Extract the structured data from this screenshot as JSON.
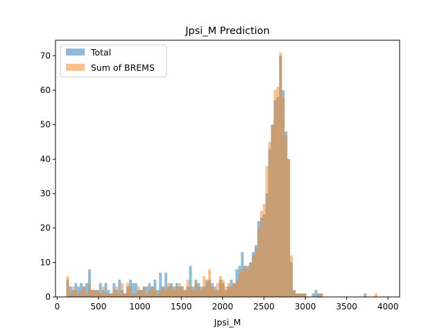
{
  "chart_data": {
    "type": "histogram",
    "title": "Jpsi_M Prediction",
    "xlabel": "Jpsi_M",
    "ylabel": "",
    "xlim": [
      -20,
      4140
    ],
    "ylim": [
      0,
      74.5
    ],
    "xticks": [
      0,
      500,
      1000,
      1500,
      2000,
      2500,
      3000,
      3500,
      4000
    ],
    "yticks": [
      0,
      10,
      20,
      30,
      40,
      50,
      60,
      70
    ],
    "grid": false,
    "legend_position": "top-left",
    "series": [
      {
        "name": "Total",
        "color": "#1f77b4",
        "alpha": 0.5,
        "bin_start": 110,
        "bin_width": 33,
        "values": [
          5,
          3,
          2,
          4,
          3,
          4,
          3,
          4,
          8,
          2,
          2,
          2,
          4,
          2,
          4,
          2,
          1,
          4,
          2,
          5,
          2,
          1,
          3,
          5,
          4,
          4,
          2,
          2,
          3,
          3,
          4,
          3,
          5,
          2,
          7,
          3,
          7,
          3,
          4,
          3,
          4,
          3,
          3,
          2,
          3,
          9,
          3,
          5,
          4,
          3,
          3,
          5,
          5,
          4,
          3,
          2,
          5,
          4,
          2,
          3,
          5,
          4,
          8,
          9,
          13,
          9,
          9,
          10,
          13,
          15,
          22,
          23,
          24,
          30,
          43,
          50,
          57,
          58,
          70,
          60,
          48,
          40,
          10,
          2,
          1,
          1,
          1,
          1,
          0,
          0,
          1,
          2,
          1,
          1,
          0,
          0,
          0,
          0,
          0,
          0,
          0,
          0,
          0,
          0,
          0,
          0,
          0,
          0,
          0,
          1,
          0,
          0,
          0,
          0,
          0
        ]
      },
      {
        "name": "Sum of BREMS",
        "color": "#ff7f0e",
        "alpha": 0.5,
        "bin_start": 110,
        "bin_width": 33,
        "values": [
          6,
          1,
          3,
          2,
          1,
          2,
          3,
          1,
          4,
          2,
          2,
          2,
          1,
          3,
          1,
          1,
          1,
          2,
          3,
          1,
          4,
          1,
          4,
          3,
          1,
          1,
          3,
          2,
          3,
          1,
          2,
          3,
          2,
          1,
          2,
          3,
          2,
          4,
          3,
          2,
          3,
          4,
          3,
          2,
          5,
          3,
          2,
          4,
          3,
          2,
          6,
          4,
          8,
          3,
          2,
          4,
          6,
          5,
          3,
          4,
          3,
          4,
          5,
          7,
          8,
          9,
          8,
          10,
          12,
          14,
          20,
          25,
          27,
          38,
          45,
          50,
          60,
          61,
          71,
          58,
          47,
          40,
          12,
          2,
          1,
          1,
          1,
          1,
          0,
          0,
          0,
          0,
          1,
          1,
          0,
          0,
          0,
          0,
          0,
          0,
          0,
          0,
          0,
          0,
          0,
          0,
          0,
          0,
          0,
          0,
          0,
          0,
          0,
          1,
          0
        ]
      }
    ]
  }
}
